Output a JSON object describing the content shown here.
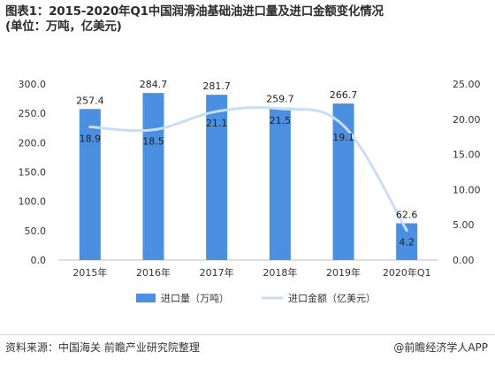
{
  "header": {
    "title_line1": "图表1：2015-2020年Q1中国润滑油基础油进口量及进口金额变化情况",
    "title_line2": "(单位：万吨，亿美元)"
  },
  "chart_data": {
    "type": "bar",
    "categories": [
      "2015年",
      "2016年",
      "2017年",
      "2018年",
      "2019年",
      "2020年Q1"
    ],
    "series": [
      {
        "name": "进口量（万吨）",
        "type": "bar",
        "axis": "left",
        "color": "#4a8fe0",
        "values": [
          257.4,
          284.7,
          281.7,
          259.7,
          266.7,
          62.6
        ],
        "labels": [
          "257.4",
          "284.7",
          "281.7",
          "259.7",
          "266.7",
          "62.6"
        ]
      },
      {
        "name": "进口金额（亿美元）",
        "type": "line",
        "axis": "right",
        "color": "#c9ddf4",
        "values": [
          18.9,
          18.5,
          21.1,
          21.5,
          19.1,
          4.2
        ],
        "labels": [
          "18.9",
          "18.5",
          "21.1",
          "21.5",
          "19.1",
          "4.2"
        ]
      }
    ],
    "y_left": {
      "range": [
        0,
        300
      ],
      "ticks": [
        "0.0",
        "50.0",
        "100.0",
        "150.0",
        "200.0",
        "250.0",
        "300.0"
      ]
    },
    "y_right": {
      "range": [
        0,
        25
      ],
      "ticks": [
        "0.00",
        "5.00",
        "10.00",
        "15.00",
        "20.00",
        "25.00"
      ]
    },
    "grid": false,
    "legend_position": "bottom"
  },
  "footer": {
    "source": "资料来源：中国海关 前瞻产业研究院整理",
    "brand": "@前瞻经济学人APP"
  }
}
